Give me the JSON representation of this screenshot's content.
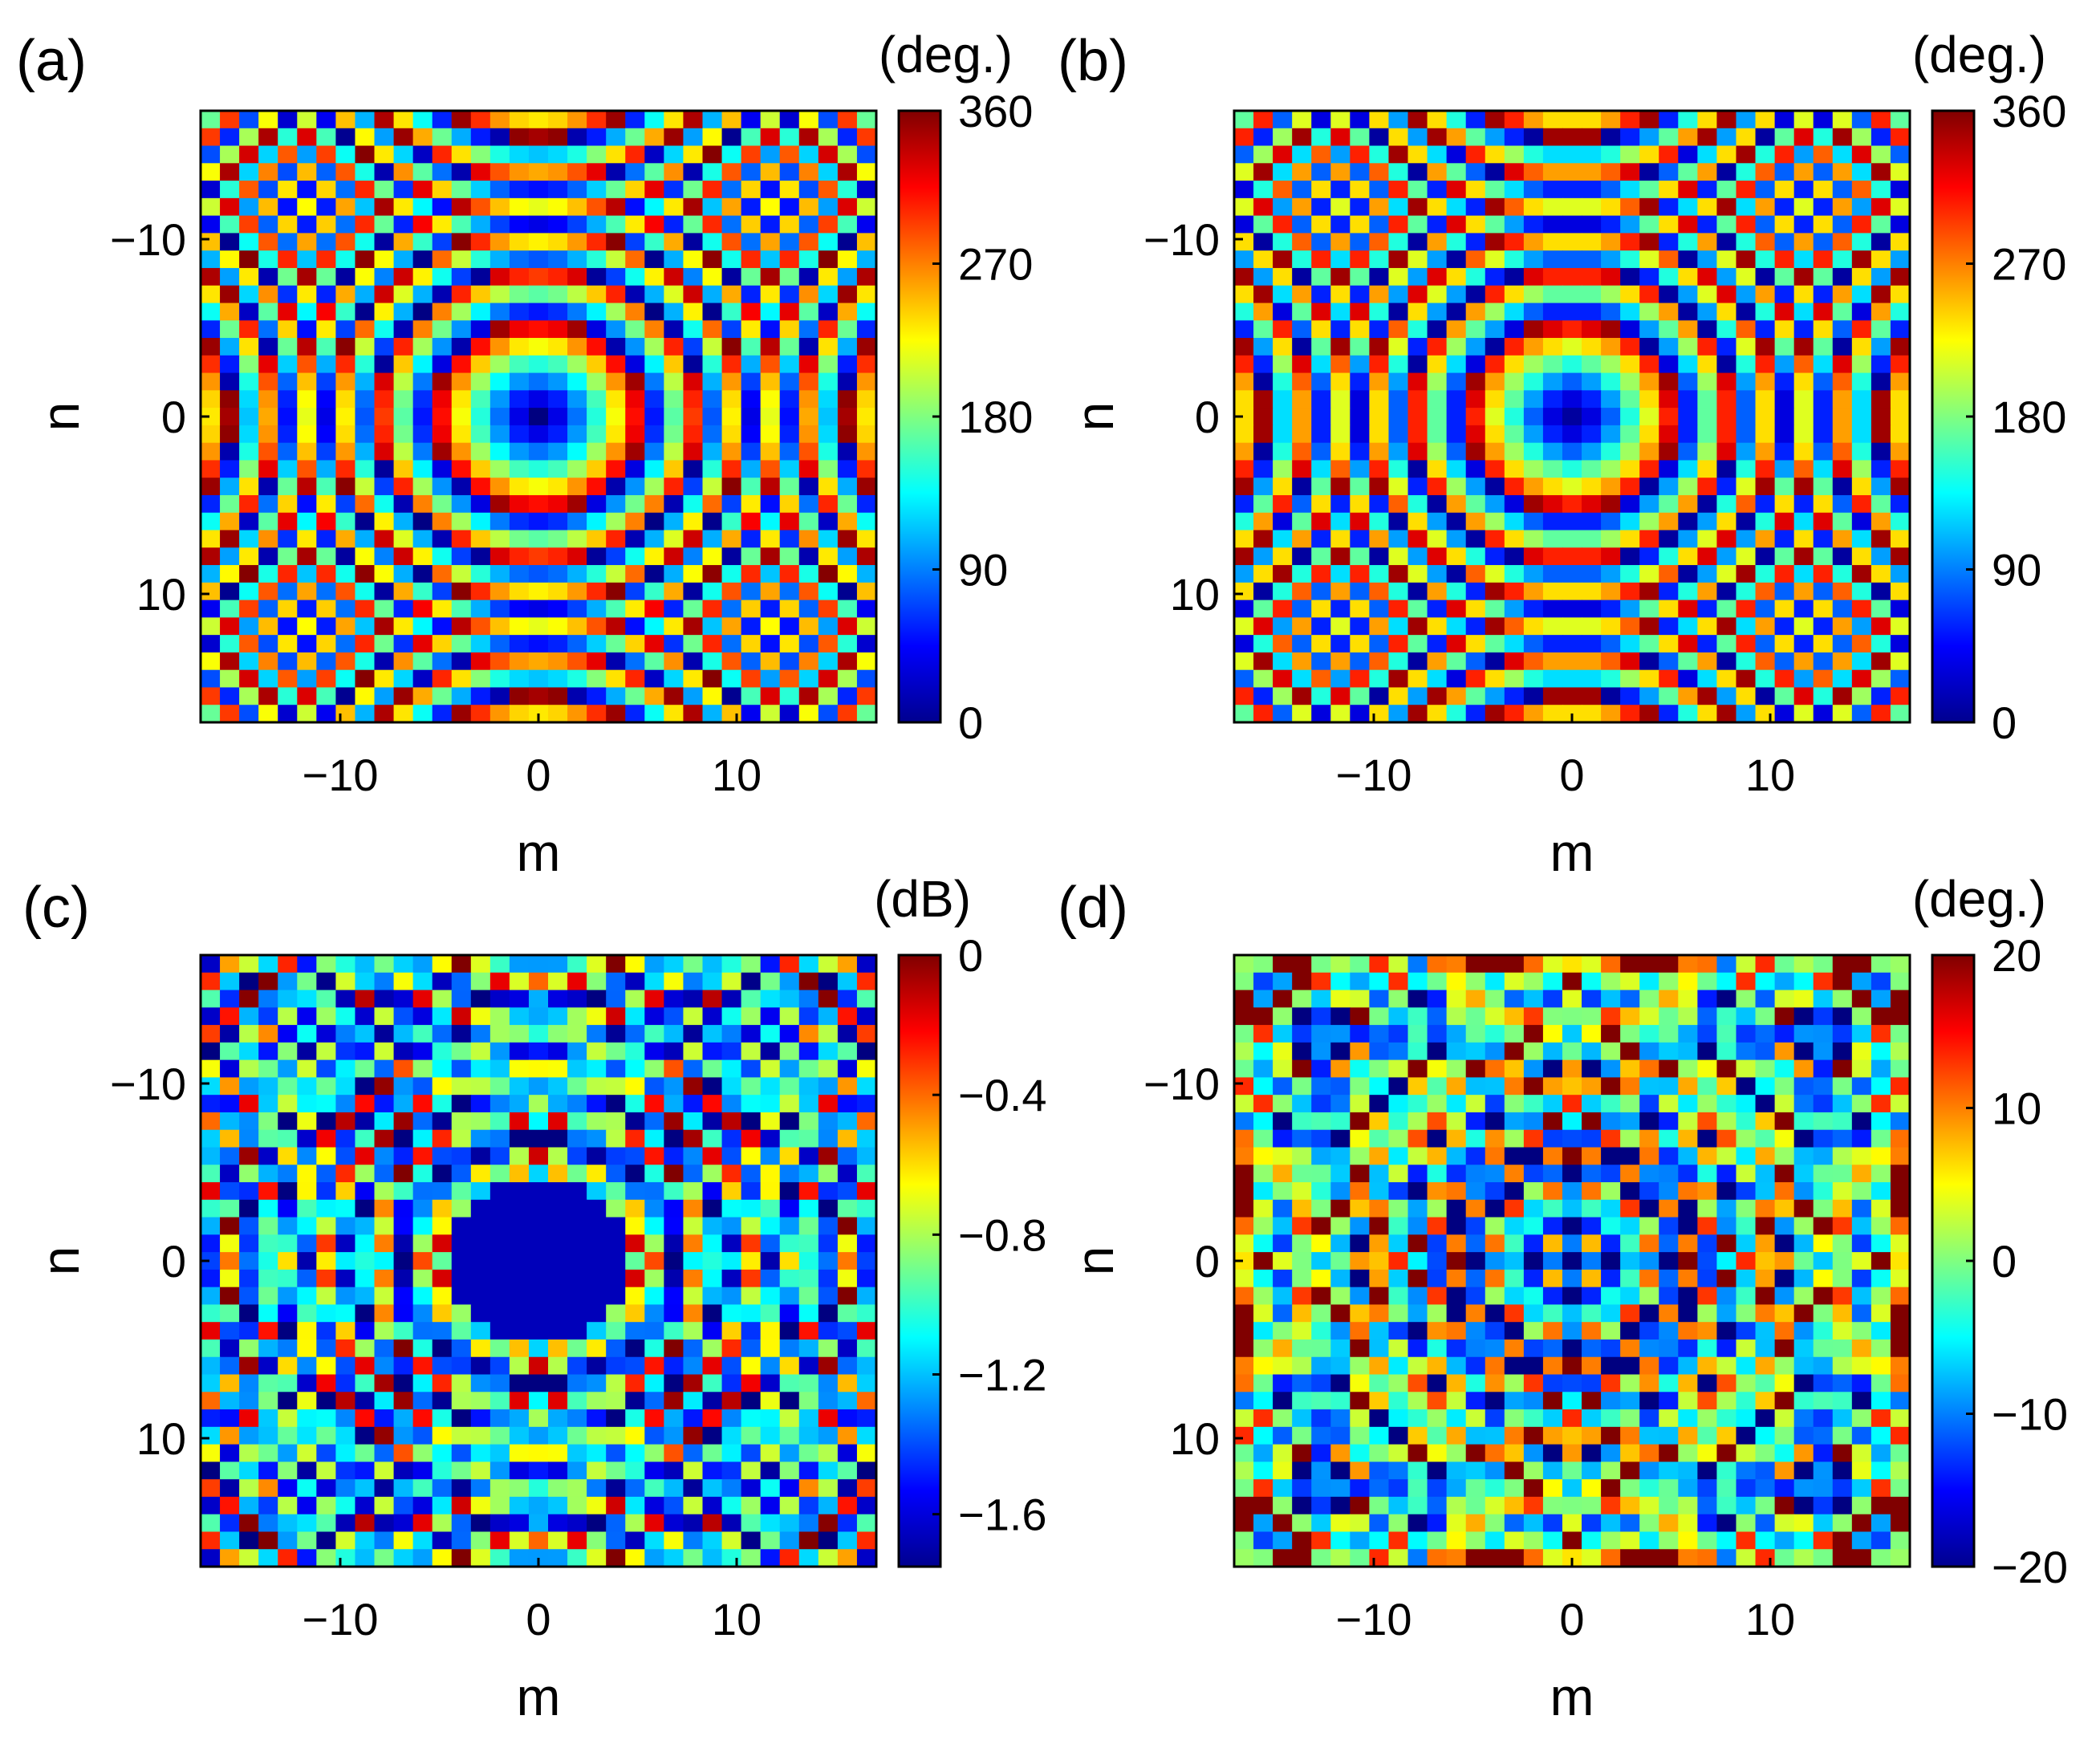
{
  "chart_data": [
    {
      "type": "heatmap",
      "panel_label": "(a)",
      "xlabel": "m",
      "ylabel": "n",
      "x_range": [
        -17,
        17
      ],
      "y_range": [
        -17,
        17
      ],
      "y_axis_reversed": true,
      "x_ticks": [
        "−10",
        "0",
        "10"
      ],
      "x_tick_values": [
        -10,
        0,
        10
      ],
      "y_ticks": [
        "−10",
        "0",
        "10"
      ],
      "y_tick_values": [
        -10,
        0,
        10
      ],
      "colorbar": {
        "unit": "(deg.)",
        "min": 0,
        "max": 360,
        "ticks": [
          "0",
          "90",
          "180",
          "270",
          "360"
        ],
        "tick_values": [
          0,
          90,
          180,
          270,
          360
        ],
        "colormap": "jet"
      },
      "pattern": {
        "kind": "phase_rings",
        "ring_period_cells": 5.5,
        "cell_quantized": true
      },
      "grid": false
    },
    {
      "type": "heatmap",
      "panel_label": "(b)",
      "xlabel": "m",
      "ylabel": "n",
      "x_range": [
        -17,
        17
      ],
      "y_range": [
        -17,
        17
      ],
      "y_axis_reversed": true,
      "x_ticks": [
        "−10",
        "0",
        "10"
      ],
      "x_tick_values": [
        -10,
        0,
        10
      ],
      "y_ticks": [
        "−10",
        "0",
        "10"
      ],
      "y_tick_values": [
        -10,
        0,
        10
      ],
      "colorbar": {
        "unit": "(deg.)",
        "min": 0,
        "max": 360,
        "ticks": [
          "0",
          "90",
          "180",
          "270",
          "360"
        ],
        "tick_values": [
          0,
          90,
          180,
          270,
          360
        ],
        "colormap": "jet"
      },
      "pattern": {
        "kind": "phase_rings_quantized",
        "ring_period_cells": 5.5,
        "phase_levels": 16
      },
      "grid": false
    },
    {
      "type": "heatmap",
      "panel_label": "(c)",
      "xlabel": "m",
      "ylabel": "n",
      "x_range": [
        -17,
        17
      ],
      "y_range": [
        -17,
        17
      ],
      "y_axis_reversed": true,
      "x_ticks": [
        "−10",
        "0",
        "10"
      ],
      "x_tick_values": [
        -10,
        0,
        10
      ],
      "y_ticks": [
        "−10",
        "0",
        "10"
      ],
      "y_tick_values": [
        -10,
        0,
        10
      ],
      "colorbar": {
        "unit": "(dB)",
        "min": -1.75,
        "max": 0,
        "ticks": [
          "−1.6",
          "−1.2",
          "−0.8",
          "−0.4",
          "0"
        ],
        "tick_values": [
          -1.6,
          -1.2,
          -0.8,
          -0.4,
          0
        ],
        "colormap": "jet"
      },
      "pattern": {
        "kind": "amplitude_rings",
        "ring_period_cells": 5.5
      },
      "grid": false
    },
    {
      "type": "heatmap",
      "panel_label": "(d)",
      "xlabel": "m",
      "ylabel": "n",
      "x_range": [
        -17,
        17
      ],
      "y_range": [
        -17,
        17
      ],
      "y_axis_reversed": true,
      "x_ticks": [
        "−10",
        "0",
        "10"
      ],
      "x_tick_values": [
        -10,
        0,
        10
      ],
      "y_ticks": [
        "−10",
        "0",
        "10"
      ],
      "y_tick_values": [
        -10,
        0,
        10
      ],
      "colorbar": {
        "unit": "(deg.)",
        "min": -20,
        "max": 20,
        "ticks": [
          "−20",
          "−10",
          "0",
          "10",
          "20"
        ],
        "tick_values": [
          -20,
          -10,
          0,
          10,
          20
        ],
        "colormap": "jet"
      },
      "pattern": {
        "kind": "phase_error_symmetric"
      },
      "grid": false
    }
  ]
}
